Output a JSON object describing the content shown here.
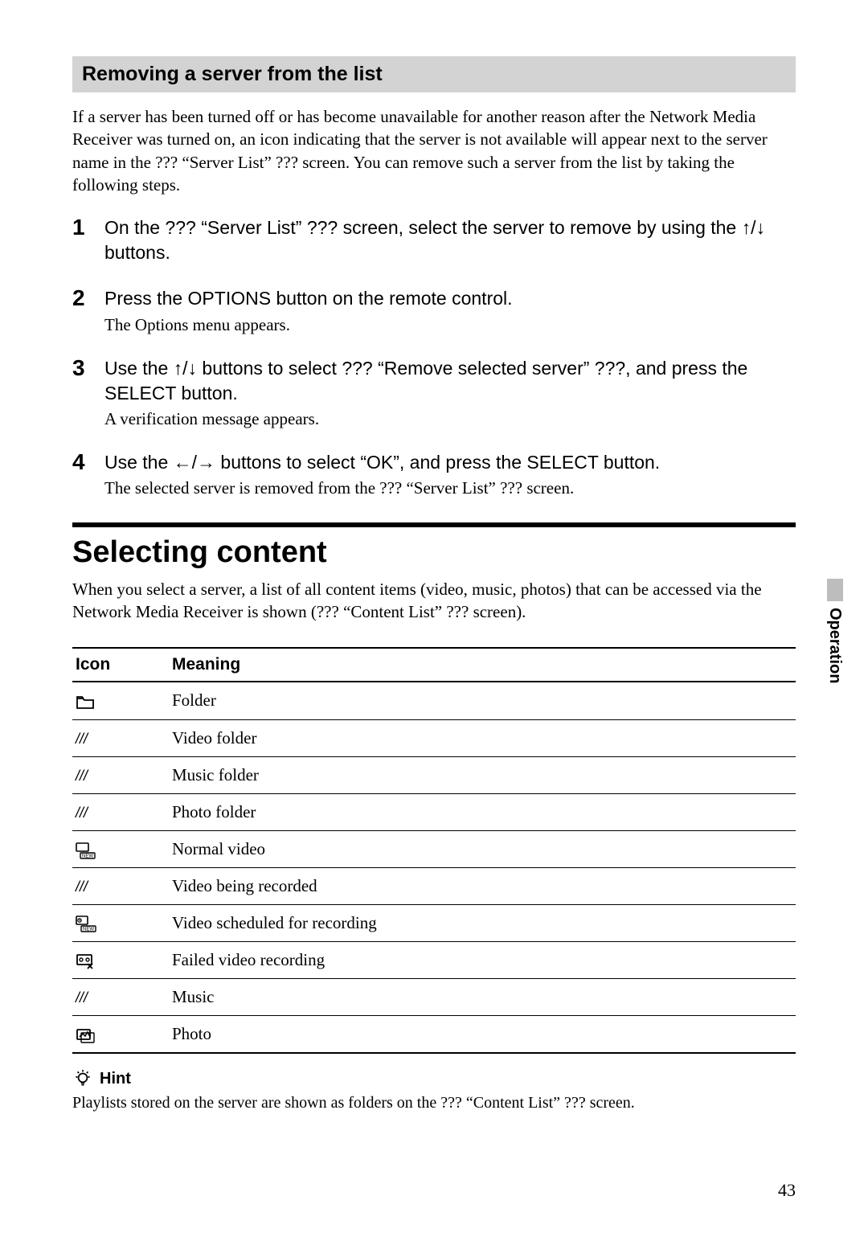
{
  "header1": "Removing a server from the list",
  "intro1": "If a server has been turned off or has become unavailable for another reason after the Network Media Receiver was turned on, an icon indicating that the server is not available will appear next to the server name in the ??? “Server List” ??? screen. You can remove such a server from the list by taking the following steps.",
  "steps": [
    {
      "n": "1",
      "instr_pre": "On the ??? “Server List” ??? screen, select the server to remove by using the ",
      "arrows": "↑/↓",
      "instr_post": " buttons.",
      "result": ""
    },
    {
      "n": "2",
      "instr_pre": "Press the OPTIONS button on the remote control.",
      "arrows": "",
      "instr_post": "",
      "result": "The Options menu appears."
    },
    {
      "n": "3",
      "instr_pre": "Use the ",
      "arrows": "↑/↓",
      "instr_post": "  buttons to select ??? “Remove selected server” ???, and press the SELECT button.",
      "result": "A verification message appears."
    },
    {
      "n": "4",
      "instr_pre": "Use the ",
      "arrows": "←/→",
      "instr_post": " buttons to select “OK”, and press the SELECT button.",
      "result": "The selected server is removed from the ??? “Server List” ??? screen."
    }
  ],
  "h1": "Selecting content",
  "intro2": "When you select a server, a list of all content items (video, music, photos) that can be accessed via the Network Media Receiver is shown (??? “Content List” ??? screen).",
  "table": {
    "col1": "Icon",
    "col2": "Meaning",
    "rows": [
      {
        "icon": "folder",
        "glyph": "",
        "meaning": "Folder"
      },
      {
        "icon": "placeholder",
        "glyph": "///",
        "meaning": "Video folder"
      },
      {
        "icon": "placeholder",
        "glyph": "///",
        "meaning": "Music folder"
      },
      {
        "icon": "placeholder",
        "glyph": "///",
        "meaning": "Photo folder"
      },
      {
        "icon": "normal-video",
        "glyph": "",
        "meaning": "Normal video"
      },
      {
        "icon": "placeholder",
        "glyph": "///",
        "meaning": "Video being recorded"
      },
      {
        "icon": "scheduled-video",
        "glyph": "",
        "meaning": "Video scheduled for recording"
      },
      {
        "icon": "failed-video",
        "glyph": "",
        "meaning": "Failed video recording"
      },
      {
        "icon": "placeholder",
        "glyph": "///",
        "meaning": "Music"
      },
      {
        "icon": "photo",
        "glyph": "",
        "meaning": "Photo"
      }
    ]
  },
  "hint_label": "Hint",
  "hint_text": "Playlists stored on the server are shown as folders on the ??? “Content List” ??? screen.",
  "side_tab": "Operation",
  "page_num": "43"
}
